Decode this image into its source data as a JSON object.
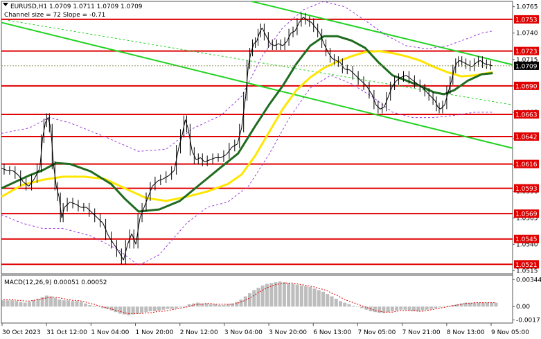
{
  "chart_data": {
    "type": "line",
    "title": "EURUSD,H1  1.0709 1.0711 1.0709 1.0709",
    "subtitle": "Channel size = 72 Slope = -0.71",
    "macd_label": "MACD(12,26,9) 0.00051 0.00052",
    "x_ticks": [
      "30 Oct 2023",
      "31 Oct 12:00",
      "1 Nov 04:00",
      "1 Nov 20:00",
      "2 Nov 12:00",
      "3 Nov 04:00",
      "3 Nov 20:00",
      "6 Nov 13:00",
      "7 Nov 05:00",
      "7 Nov 21:00",
      "8 Nov 13:00",
      "9 Nov 05:00"
    ],
    "y_ticks": [
      "1.0765",
      "1.0740",
      "1.0715",
      "1.0690",
      "1.0665",
      "1.0640",
      "1.0615",
      "1.0590",
      "1.0565",
      "1.0540",
      "1.0515"
    ],
    "ylim": [
      1.0512,
      1.077
    ],
    "macd_ticks": [
      "0.00344",
      "0.00",
      "-0.0017"
    ],
    "macd_ylim": [
      -0.0021,
      0.004
    ],
    "levels": [
      {
        "label": "1.0753",
        "value": 1.0753
      },
      {
        "label": "1.0723",
        "value": 1.0723
      },
      {
        "label": "1.0690",
        "value": 1.069
      },
      {
        "label": "1.0663",
        "value": 1.0663
      },
      {
        "label": "1.0642",
        "value": 1.0642
      },
      {
        "label": "1.0616",
        "value": 1.0616
      },
      {
        "label": "1.0593",
        "value": 1.0593
      },
      {
        "label": "1.0569",
        "value": 1.0569
      },
      {
        "label": "1.0545",
        "value": 1.0545
      },
      {
        "label": "1.0521",
        "value": 1.0521
      }
    ],
    "current_price": {
      "label": "1.0709",
      "value": 1.0709
    },
    "price_series": {
      "name": "EURUSD H1",
      "x": [
        0,
        8,
        16,
        24,
        32,
        40,
        48,
        56,
        60,
        64,
        68,
        72,
        76,
        80,
        84,
        88,
        92,
        100,
        108,
        116,
        124,
        132,
        140,
        148,
        156,
        164,
        172,
        178,
        184,
        190,
        196,
        202,
        208,
        214,
        220,
        228,
        236,
        244,
        252,
        258,
        264,
        268,
        272,
        278,
        284,
        290,
        296,
        304,
        312,
        320,
        328,
        336,
        344,
        350,
        356,
        360,
        364,
        368,
        372,
        376,
        380,
        386,
        392,
        398,
        404,
        410,
        416,
        422,
        428,
        434,
        440,
        446,
        452,
        458,
        464,
        470,
        476,
        482,
        488,
        494,
        500,
        508,
        516,
        524,
        532,
        540,
        546,
        552,
        558,
        564,
        570,
        576,
        582,
        590,
        598,
        606,
        614,
        620,
        626,
        632,
        636,
        640,
        646,
        652,
        656,
        660,
        664,
        668,
        674,
        680,
        686,
        692,
        698,
        704,
        710,
        716
      ],
      "y": [
        1.0612,
        1.061,
        1.061,
        1.0606,
        1.0599,
        1.0595,
        1.0602,
        1.0612,
        1.064,
        1.0655,
        1.066,
        1.065,
        1.0615,
        1.0595,
        1.0585,
        1.0565,
        1.0575,
        1.058,
        1.0578,
        1.0575,
        1.0575,
        1.057,
        1.0565,
        1.056,
        1.0548,
        1.054,
        1.0532,
        1.0525,
        1.054,
        1.055,
        1.054,
        1.0565,
        1.0575,
        1.0585,
        1.0595,
        1.06,
        1.0602,
        1.0605,
        1.061,
        1.063,
        1.0645,
        1.0658,
        1.065,
        1.0628,
        1.062,
        1.0622,
        1.0618,
        1.062,
        1.0622,
        1.0622,
        1.0625,
        1.0632,
        1.0635,
        1.065,
        1.068,
        1.071,
        1.0722,
        1.073,
        1.0732,
        1.074,
        1.0745,
        1.0737,
        1.073,
        1.0728,
        1.073,
        1.0728,
        1.0732,
        1.074,
        1.0742,
        1.075,
        1.0755,
        1.0752,
        1.075,
        1.0745,
        1.074,
        1.073,
        1.0722,
        1.0716,
        1.0714,
        1.0712,
        1.0706,
        1.0705,
        1.07,
        1.0695,
        1.069,
        1.0682,
        1.0672,
        1.0668,
        1.067,
        1.068,
        1.069,
        1.0695,
        1.0698,
        1.07,
        1.0696,
        1.0692,
        1.0688,
        1.0684,
        1.068,
        1.0676,
        1.067,
        1.0668,
        1.0672,
        1.0686,
        1.0695,
        1.0706,
        1.0712,
        1.0714,
        1.0712,
        1.071,
        1.0708,
        1.0712,
        1.0714,
        1.0711,
        1.071,
        1.0709
      ]
    },
    "ma_slow": {
      "name": "MA yellow",
      "color": "#ffe600",
      "x": [
        0,
        30,
        60,
        90,
        120,
        150,
        180,
        210,
        240,
        270,
        300,
        330,
        350,
        370,
        390,
        410,
        430,
        450,
        470,
        490,
        510,
        530,
        550,
        570,
        590,
        610,
        630,
        650,
        670,
        690,
        716
      ],
      "y": [
        1.0585,
        1.0596,
        1.0601,
        1.0604,
        1.0604,
        1.0602,
        1.0593,
        1.0584,
        1.0581,
        1.0585,
        1.059,
        1.0597,
        1.0606,
        1.0624,
        1.0646,
        1.0668,
        1.0686,
        1.0698,
        1.0707,
        1.0713,
        1.0718,
        1.0722,
        1.0723,
        1.0721,
        1.0718,
        1.0714,
        1.0708,
        1.0703,
        1.0699,
        1.07,
        1.0703
      ]
    },
    "ma_fast": {
      "name": "MA green",
      "color": "#1f6b1f",
      "x": [
        0,
        20,
        40,
        60,
        80,
        100,
        130,
        160,
        180,
        200,
        230,
        260,
        290,
        320,
        345,
        370,
        390,
        410,
        430,
        450,
        470,
        490,
        510,
        530,
        550,
        570,
        590,
        610,
        630,
        645,
        660,
        680,
        700,
        716
      ],
      "y": [
        1.0593,
        1.0599,
        1.0605,
        1.061,
        1.0617,
        1.0616,
        1.0609,
        1.0597,
        1.0583,
        1.0571,
        1.0573,
        1.0581,
        1.0597,
        1.0613,
        1.0626,
        1.0652,
        1.0672,
        1.069,
        1.0711,
        1.0728,
        1.0737,
        1.0737,
        1.0733,
        1.0726,
        1.0712,
        1.07,
        1.0695,
        1.069,
        1.0684,
        1.0682,
        1.0686,
        1.0695,
        1.0701,
        1.0702
      ]
    },
    "env_upper": {
      "name": "Envelope upper",
      "color": "#9a3bd9",
      "x": [
        0,
        40,
        70,
        100,
        150,
        200,
        240,
        280,
        320,
        350,
        380,
        410,
        440,
        470,
        500,
        530,
        560,
        590,
        620,
        650,
        680,
        700,
        716
      ],
      "y": [
        1.0645,
        1.065,
        1.066,
        1.0655,
        1.0642,
        1.0628,
        1.063,
        1.065,
        1.0662,
        1.068,
        1.0718,
        1.0745,
        1.0762,
        1.077,
        1.0765,
        1.0752,
        1.0738,
        1.0728,
        1.0725,
        1.0728,
        1.0735,
        1.074,
        1.0742
      ]
    },
    "env_lower": {
      "name": "Envelope lower",
      "color": "#9a3bd9",
      "x": [
        0,
        30,
        60,
        90,
        130,
        170,
        200,
        230,
        270,
        300,
        330,
        360,
        390,
        420,
        450,
        480,
        510,
        540,
        570,
        600,
        630,
        660,
        690,
        716
      ],
      "y": [
        1.0568,
        1.056,
        1.0555,
        1.0555,
        1.0548,
        1.0535,
        1.052,
        1.053,
        1.056,
        1.0575,
        1.058,
        1.0595,
        1.0625,
        1.066,
        1.0688,
        1.07,
        1.0692,
        1.068,
        1.0665,
        1.066,
        1.066,
        1.0662,
        1.0665,
        1.0665
      ]
    },
    "channel": {
      "color": "#22d322",
      "upper": [
        {
          "x": 365,
          "y": 1.077
        },
        {
          "x": 745,
          "y": 1.071
        }
      ],
      "lower": [
        {
          "x": 0,
          "y": 1.075
        },
        {
          "x": 745,
          "y": 1.0631
        }
      ],
      "mid": [
        {
          "x": 10,
          "y": 1.0752
        },
        {
          "x": 745,
          "y": 1.0672
        }
      ]
    },
    "macd_histogram": [
      0.0008,
      0.0008,
      0.0008,
      0.0007,
      0.0006,
      0.0005,
      0.0006,
      0.0008,
      0.001,
      0.0012,
      0.0014,
      0.0013,
      0.0011,
      0.0009,
      0.0008,
      0.0008,
      0.0007,
      0.0007,
      0.0006,
      0.0004,
      0.0002,
      0.0001,
      0.0,
      -0.0002,
      -0.0003,
      -0.0005,
      -0.0007,
      -0.0009,
      -0.001,
      -0.0011,
      -0.001,
      -0.0009,
      -0.0008,
      -0.0007,
      -0.0006,
      -0.0006,
      -0.0005,
      -0.0004,
      -0.0003,
      -0.0003,
      -0.0002,
      -0.0001,
      0.0001,
      0.0003,
      0.0004,
      0.0005,
      0.0004,
      0.0004,
      0.0003,
      0.0003,
      0.0002,
      0.0002,
      0.0003,
      0.0004,
      0.0006,
      0.0009,
      0.0013,
      0.0017,
      0.0021,
      0.0024,
      0.0027,
      0.0029,
      0.003,
      0.0031,
      0.0032,
      0.0031,
      0.003,
      0.0029,
      0.0028,
      0.0027,
      0.0026,
      0.0025,
      0.0023,
      0.0021,
      0.0019,
      0.0016,
      0.0013,
      0.001,
      0.0007,
      0.0005,
      0.0003,
      0.0001,
      0.0,
      -0.0002,
      -0.0004,
      -0.0006,
      -0.0007,
      -0.0008,
      -0.0008,
      -0.0007,
      -0.0006,
      -0.0005,
      -0.0004,
      -0.0004,
      -0.0005,
      -0.0006,
      -0.0006,
      -0.0005,
      -0.0004,
      -0.0003,
      -0.0002,
      -0.0001,
      0.0,
      0.0001,
      0.0002,
      0.0003,
      0.0004,
      0.0005,
      0.0005,
      0.0005,
      0.0005,
      0.0005,
      0.0005,
      0.0005,
      0.0005
    ],
    "macd_signal": [
      0.0009,
      0.0009,
      0.0009,
      0.0008,
      0.0008,
      0.0007,
      0.0007,
      0.0008,
      0.0009,
      0.001,
      0.0011,
      0.0012,
      0.0012,
      0.0011,
      0.001,
      0.0009,
      0.0008,
      0.0008,
      0.0007,
      0.0006,
      0.0004,
      0.0003,
      0.0001,
      0.0,
      -0.0002,
      -0.0003,
      -0.0005,
      -0.0006,
      -0.0008,
      -0.0009,
      -0.0009,
      -0.0009,
      -0.0009,
      -0.0008,
      -0.0008,
      -0.0007,
      -0.0006,
      -0.0006,
      -0.0005,
      -0.0004,
      -0.0003,
      -0.0002,
      -0.0001,
      0.0,
      0.0002,
      0.0003,
      0.0003,
      0.0004,
      0.0004,
      0.0003,
      0.0003,
      0.0003,
      0.0003,
      0.0003,
      0.0004,
      0.0006,
      0.0008,
      0.0011,
      0.0014,
      0.0018,
      0.0021,
      0.0024,
      0.0026,
      0.0028,
      0.0029,
      0.003,
      0.003,
      0.003,
      0.0029,
      0.0028,
      0.0027,
      0.0026,
      0.0025,
      0.0023,
      0.0022,
      0.002,
      0.0017,
      0.0015,
      0.0012,
      0.0009,
      0.0007,
      0.0005,
      0.0003,
      0.0001,
      -0.0001,
      -0.0003,
      -0.0005,
      -0.0006,
      -0.0007,
      -0.0007,
      -0.0007,
      -0.0006,
      -0.0005,
      -0.0005,
      -0.0005,
      -0.0005,
      -0.0006,
      -0.0006,
      -0.0005,
      -0.0004,
      -0.0003,
      -0.0002,
      -0.0001,
      0.0,
      0.0001,
      0.0002,
      0.0003,
      0.0004,
      0.0004,
      0.0005,
      0.0005,
      0.0005,
      0.0005,
      0.0005,
      0.0005
    ],
    "colors": {
      "level": "#e00000",
      "macd_hist": "#bdbdbd",
      "macd_signal": "#e00000",
      "price": "#000000"
    }
  }
}
